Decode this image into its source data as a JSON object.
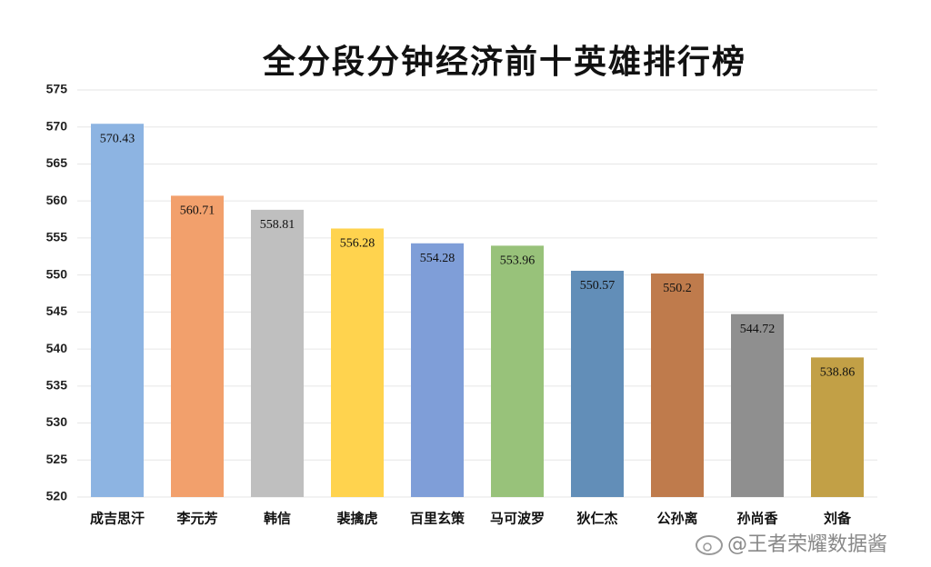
{
  "chart_data": {
    "type": "bar",
    "title": "全分段分钟经济前十英雄排行榜",
    "categories": [
      "成吉思汗",
      "李元芳",
      "韩信",
      "裴擒虎",
      "百里玄策",
      "马可波罗",
      "狄仁杰",
      "公孙离",
      "孙尚香",
      "刘备"
    ],
    "values": [
      570.43,
      560.71,
      558.81,
      556.28,
      554.28,
      553.96,
      550.57,
      550.2,
      544.72,
      538.86
    ],
    "colors": [
      "#8db4e2",
      "#f2a06c",
      "#bfbfbf",
      "#ffd34e",
      "#7f9ed8",
      "#98c27a",
      "#628eb8",
      "#bf7b4c",
      "#8f8f8f",
      "#c2a046"
    ],
    "ylim": [
      520,
      575
    ],
    "yticks": [
      520,
      525,
      530,
      535,
      540,
      545,
      550,
      555,
      560,
      565,
      570,
      575
    ],
    "grid": true,
    "watermark": "@王者荣耀数据酱"
  }
}
